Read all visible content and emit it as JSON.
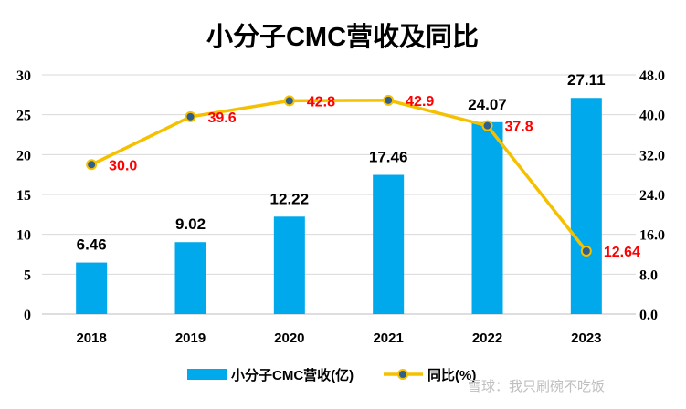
{
  "chart_data": {
    "type": "bar",
    "title": "小分子CMC营收及同比",
    "categories": [
      "2018",
      "2019",
      "2020",
      "2021",
      "2022",
      "2023"
    ],
    "series": [
      {
        "name": "小分子CMC营收(亿)",
        "type": "bar",
        "axis": "left",
        "values": [
          6.46,
          9.02,
          12.22,
          17.46,
          24.07,
          27.11
        ],
        "data_labels": [
          "6.46",
          "9.02",
          "12.22",
          "17.46",
          "24.07",
          "27.11"
        ],
        "color": "#00a8ec"
      },
      {
        "name": "同比(%)",
        "type": "line",
        "axis": "right",
        "values": [
          30.0,
          39.6,
          42.8,
          42.9,
          37.8,
          12.64
        ],
        "data_labels": [
          "30.0",
          "39.6",
          "42.8",
          "42.9",
          "37.8",
          "12.64"
        ],
        "color": "#f5c000",
        "marker_color": "#2f5f8a",
        "label_color": "#ff0000"
      }
    ],
    "y_left": {
      "range": [
        0,
        30
      ],
      "ticks": [
        "0",
        "5",
        "10",
        "15",
        "20",
        "25",
        "30"
      ]
    },
    "y_right": {
      "range": [
        0,
        48
      ],
      "ticks": [
        "0.0",
        "8.0",
        "16.0",
        "24.0",
        "32.0",
        "40.0",
        "48.0"
      ]
    },
    "grid": true,
    "legend": "bottom"
  },
  "watermark": "雪球：我只刷碗不吃饭"
}
